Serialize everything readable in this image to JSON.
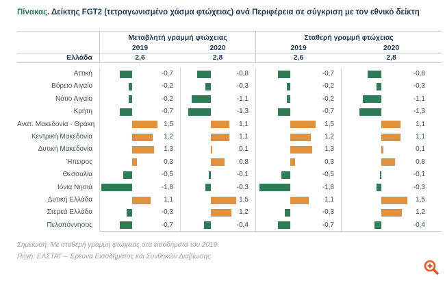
{
  "title": {
    "prefix": "Πίνακας",
    "rest": ". Δείκτης FGT2 (τετραγωνισμένο χάσμα φτώχειας) ανά Περιφέρεια σε σύγκριση με τον εθνικό δείκτη"
  },
  "chart_data": {
    "type": "bar",
    "orientation": "horizontal-diverging",
    "group_headers": [
      "Μεταβλητή γραμμή φτώχειας",
      "Σταθερή γραμμή φτώχειας"
    ],
    "year_headers": [
      "2019",
      "2020",
      "2019",
      "2020"
    ],
    "national_row": {
      "label": "Ελλάδα",
      "values": [
        "2,6",
        "2,8",
        "2,6",
        "2,8"
      ]
    },
    "categories": [
      "Αττική",
      "Βόρειο Αιγαίο",
      "Νότιο Αιγαίο",
      "Κρήτη",
      "Ανατ. Μακεδονία - Θράκη",
      "Κεντρική Μακεδονία",
      "Δυτική Μακεδονία",
      "Ήπειρος",
      "Θεσσαλία",
      "Ιόνια Νησιά",
      "Δυτική Ελλάδα",
      "Στερεά Ελλάδα",
      "Πελοπόννησος"
    ],
    "series": [
      {
        "name": "Μεταβλητή γραμμή φτώχειας 2019",
        "values": [
          -0.7,
          -0.2,
          -0.2,
          -0.7,
          1.5,
          1.2,
          1.3,
          0.3,
          -0.5,
          -1.8,
          1.1,
          -0.3,
          -0.7
        ]
      },
      {
        "name": "Μεταβλητή γραμμή φτώχειας 2020",
        "values": [
          -0.8,
          -0.3,
          -1.1,
          -1.3,
          1.1,
          1.1,
          0.1,
          0.8,
          -0.1,
          -0.3,
          1.5,
          1.2,
          -0.4
        ]
      },
      {
        "name": "Σταθερή γραμμή φτώχειας 2019",
        "values": [
          -0.7,
          -0.2,
          -0.2,
          -0.7,
          1.5,
          1.2,
          1.3,
          0.3,
          -0.5,
          -1.8,
          1.1,
          -0.3,
          -0.7
        ]
      },
      {
        "name": "Σταθερή γραμμή φτώχειας 2020",
        "values": [
          -0.8,
          -0.3,
          -1.1,
          -1.3,
          1.1,
          1.1,
          0.1,
          0.8,
          -0.1,
          -0.3,
          1.5,
          1.2,
          -0.4
        ]
      }
    ],
    "colors": {
      "negative_bar": "#2E7D57",
      "positive_bar": "#E0913E",
      "title_accent": "#2E7D57",
      "header_text": "#1E3A55",
      "zoom_icon": "#E8521F"
    }
  },
  "notes": {
    "note": "Σημείωση: Με σταθερή γραμμή φτώχειας στα εισοδήματα του 2019.",
    "source": "Πηγή: ΕΛΣΤΑΤ – Έρευνα Εισοδήματος και Συνθηκών Διαβίωσης"
  },
  "icons": {
    "zoom": "zoom-in-magnifier"
  }
}
